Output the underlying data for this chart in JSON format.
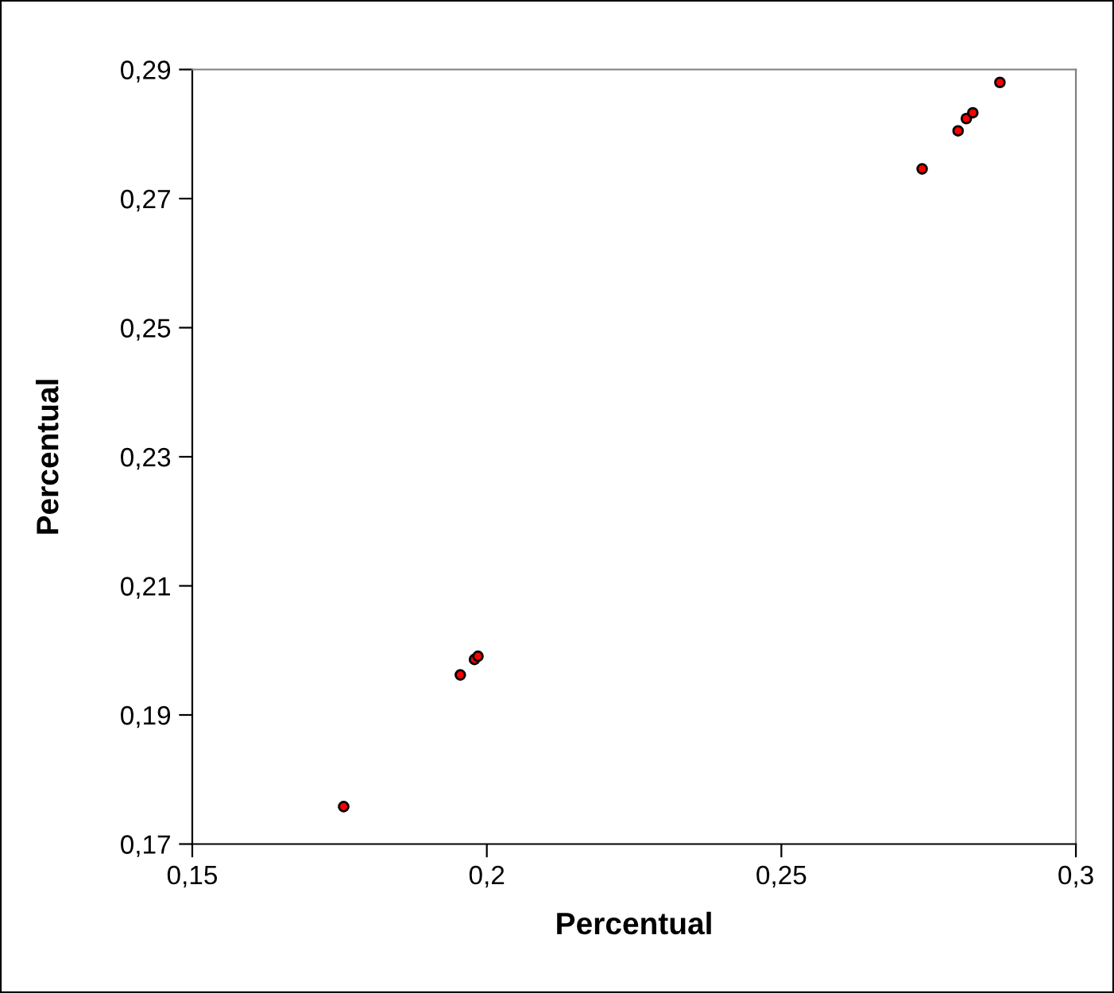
{
  "chart_data": {
    "type": "scatter",
    "xlabel": "Percentual",
    "ylabel": "Percentual",
    "x": [
      0.1757,
      0.1955,
      0.1979,
      0.1985,
      0.2739,
      0.28,
      0.2814,
      0.2825,
      0.2871
    ],
    "series": [
      {
        "color": "#ff0000",
        "values": [
          0.1758,
          0.1962,
          0.1986,
          0.1991,
          0.2746,
          0.2805,
          0.2824,
          0.2833,
          0.288
        ]
      }
    ],
    "xlim": [
      0.15,
      0.3
    ],
    "ylim": [
      0.17,
      0.29
    ],
    "xticks": [
      {
        "value": 0.15,
        "label": "0,15"
      },
      {
        "value": 0.2,
        "label": "0,2"
      },
      {
        "value": 0.25,
        "label": "0,25"
      },
      {
        "value": 0.3,
        "label": "0,3"
      }
    ],
    "yticks": [
      {
        "value": 0.17,
        "label": "0,17"
      },
      {
        "value": 0.19,
        "label": "0,19"
      },
      {
        "value": 0.21,
        "label": "0,21"
      },
      {
        "value": 0.23,
        "label": "0,23"
      },
      {
        "value": 0.25,
        "label": "0,25"
      },
      {
        "value": 0.27,
        "label": "0,27"
      },
      {
        "value": 0.29,
        "label": "0,29"
      }
    ],
    "marker": "circle",
    "grid": false,
    "legend": false
  }
}
